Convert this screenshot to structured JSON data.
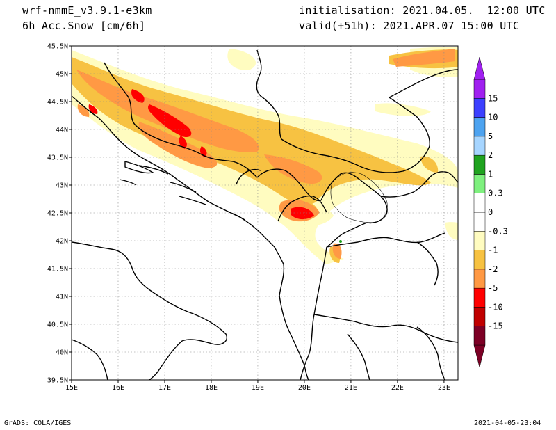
{
  "header": {
    "model": "wrf-nmmE_v3.9.1-e3km",
    "field": "6h Acc.Snow [cm/6h]",
    "init": "initialisation: 2021.04.05.  12:00 UTC",
    "valid": "valid(+51h): 2021.APR.07 15:00 UTC"
  },
  "footer": {
    "left": "GrADS: COLA/IGES",
    "right": "2021-04-05-23:04"
  },
  "map": {
    "lon_range": [
      15,
      23.3
    ],
    "lat_range": [
      39.5,
      45.5
    ],
    "lat_ticks": [
      {
        "v": 45.5,
        "t": "45.5N"
      },
      {
        "v": 45,
        "t": "45N"
      },
      {
        "v": 44.5,
        "t": "44.5N"
      },
      {
        "v": 44,
        "t": "44N"
      },
      {
        "v": 43.5,
        "t": "43.5N"
      },
      {
        "v": 43,
        "t": "43N"
      },
      {
        "v": 42.5,
        "t": "42.5N"
      },
      {
        "v": 42,
        "t": "42N"
      },
      {
        "v": 41.5,
        "t": "41.5N"
      },
      {
        "v": 41,
        "t": "41N"
      },
      {
        "v": 40.5,
        "t": "40.5N"
      },
      {
        "v": 40,
        "t": "40N"
      },
      {
        "v": 39.5,
        "t": "39.5N"
      }
    ],
    "lon_ticks": [
      {
        "v": 15,
        "t": "15E"
      },
      {
        "v": 16,
        "t": "16E"
      },
      {
        "v": 17,
        "t": "17E"
      },
      {
        "v": 18,
        "t": "18E"
      },
      {
        "v": 19,
        "t": "19E"
      },
      {
        "v": 20,
        "t": "20E"
      },
      {
        "v": 21,
        "t": "21E"
      },
      {
        "v": 22,
        "t": "22E"
      },
      {
        "v": 23,
        "t": "23E"
      }
    ],
    "grid": true
  },
  "colorbar": {
    "colors": [
      "#7d0025",
      "#c00000",
      "#ff0000",
      "#ff9944",
      "#f7c242",
      "#fffcc0",
      "#ffffff",
      "#ffffff",
      "#7ef07e",
      "#1fa31f",
      "#a6d5ff",
      "#4da3f0",
      "#3c40ff",
      "#a020f0"
    ],
    "labels": [
      "-15",
      "-10",
      "-5",
      "-2",
      "-1",
      "-0.3",
      "0",
      "0.3",
      "1",
      "2",
      "5",
      "10",
      "15"
    ]
  }
}
